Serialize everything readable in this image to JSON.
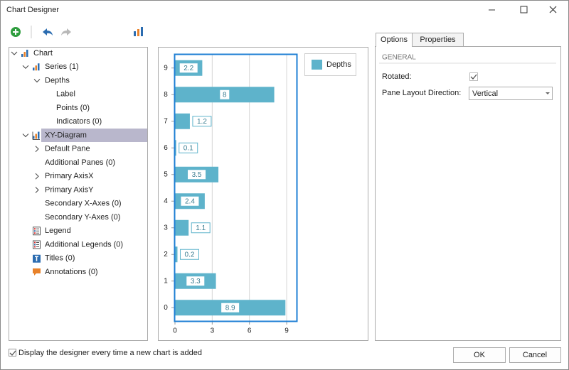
{
  "window": {
    "title": "Chart Designer"
  },
  "tree": [
    {
      "label": "Chart",
      "level": 0,
      "expanded": true,
      "icon": "chart"
    },
    {
      "label": "Series (1)",
      "level": 1,
      "expanded": true,
      "icon": "chart"
    },
    {
      "label": "Depths",
      "level": 2,
      "expanded": true
    },
    {
      "label": "Label",
      "level": 3
    },
    {
      "label": "Points (0)",
      "level": 3
    },
    {
      "label": "Indicators (0)",
      "level": 3
    },
    {
      "label": "XY-Diagram",
      "level": 1,
      "expanded": true,
      "icon": "diagram",
      "selected": true
    },
    {
      "label": "Default Pane",
      "level": 2,
      "expanded": false
    },
    {
      "label": "Additional Panes (0)",
      "level": 2
    },
    {
      "label": "Primary AxisX",
      "level": 2,
      "expanded": false
    },
    {
      "label": "Primary AxisY",
      "level": 2,
      "expanded": false
    },
    {
      "label": "Secondary X-Axes (0)",
      "level": 2
    },
    {
      "label": "Secondary Y-Axes (0)",
      "level": 2
    },
    {
      "label": "Legend",
      "level": 1,
      "icon": "legend"
    },
    {
      "label": "Additional Legends (0)",
      "level": 1,
      "icon": "legend"
    },
    {
      "label": "Titles (0)",
      "level": 1,
      "icon": "titles"
    },
    {
      "label": "Annotations (0)",
      "level": 1,
      "icon": "annotations"
    }
  ],
  "chart_data": {
    "type": "bar",
    "orientation": "horizontal",
    "categories": [
      "0",
      "1",
      "2",
      "3",
      "4",
      "5",
      "6",
      "7",
      "8",
      "9"
    ],
    "series": [
      {
        "name": "Depths",
        "color": "#5eb3cb",
        "values": [
          8.9,
          3.3,
          0.2,
          1.1,
          2.4,
          3.5,
          0.1,
          1.2,
          8,
          2.2
        ]
      }
    ],
    "xlim": [
      0,
      9.8
    ],
    "xticks": [
      0,
      3,
      6,
      9
    ],
    "grid": true,
    "legend": "top-right"
  },
  "tabs": [
    {
      "label": "Options",
      "selected": true
    },
    {
      "label": "Properties"
    }
  ],
  "options": {
    "section": "GENERAL",
    "rotated_label": "Rotated:",
    "rotated": true,
    "layout_label": "Pane Layout Direction:",
    "layout_value": "Vertical"
  },
  "footer": {
    "checkbox_label": "Display the designer every time a new chart is added",
    "checked": true,
    "ok": "OK",
    "cancel": "Cancel"
  }
}
